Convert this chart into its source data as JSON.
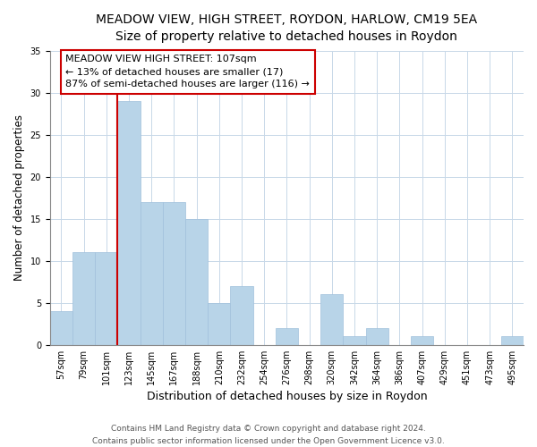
{
  "title": "MEADOW VIEW, HIGH STREET, ROYDON, HARLOW, CM19 5EA",
  "subtitle": "Size of property relative to detached houses in Roydon",
  "xlabel": "Distribution of detached houses by size in Roydon",
  "ylabel": "Number of detached properties",
  "footer_line1": "Contains HM Land Registry data © Crown copyright and database right 2024.",
  "footer_line2": "Contains public sector information licensed under the Open Government Licence v3.0.",
  "bin_labels": [
    "57sqm",
    "79sqm",
    "101sqm",
    "123sqm",
    "145sqm",
    "167sqm",
    "188sqm",
    "210sqm",
    "232sqm",
    "254sqm",
    "276sqm",
    "298sqm",
    "320sqm",
    "342sqm",
    "364sqm",
    "386sqm",
    "407sqm",
    "429sqm",
    "451sqm",
    "473sqm",
    "495sqm"
  ],
  "bar_values": [
    4,
    11,
    11,
    29,
    17,
    17,
    15,
    5,
    7,
    0,
    2,
    0,
    6,
    1,
    2,
    0,
    1,
    0,
    0,
    0,
    1
  ],
  "bar_color": "#b8d4e8",
  "bar_edge_color": "#a0c0dc",
  "property_line_bin_index": 2.5,
  "annotation_text": "MEADOW VIEW HIGH STREET: 107sqm\n← 13% of detached houses are smaller (17)\n87% of semi-detached houses are larger (116) →",
  "annotation_box_color": "#ffffff",
  "annotation_box_edge": "#cc0000",
  "vline_color": "#cc0000",
  "ylim": [
    0,
    35
  ],
  "yticks": [
    0,
    5,
    10,
    15,
    20,
    25,
    30,
    35
  ],
  "title_fontsize": 10,
  "subtitle_fontsize": 9.5,
  "xlabel_fontsize": 9,
  "ylabel_fontsize": 8.5,
  "tick_fontsize": 7,
  "annotation_fontsize": 8,
  "footer_fontsize": 6.5,
  "background_color": "#f0f4f8"
}
